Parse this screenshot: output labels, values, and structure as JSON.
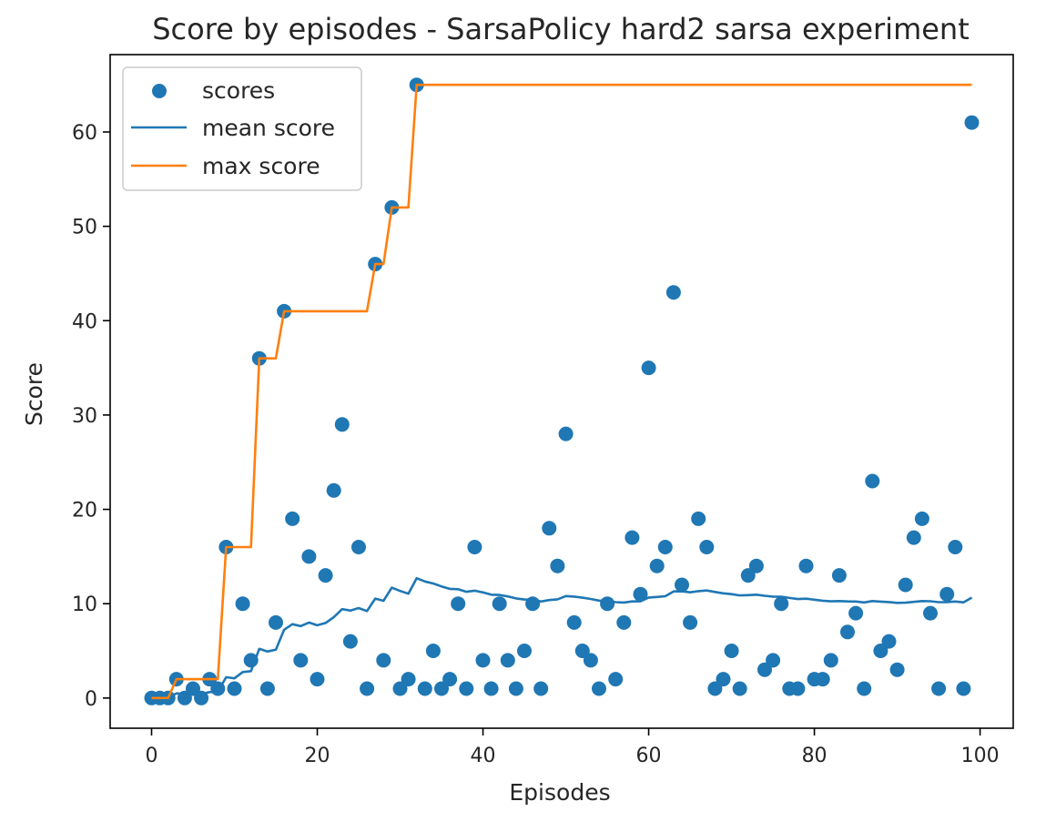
{
  "chart_data": {
    "type": "scatter",
    "title": "Score by episodes - SarsaPolicy hard2 sarsa experiment",
    "xlabel": "Episodes",
    "ylabel": "Score",
    "xlim": [
      -5,
      104
    ],
    "ylim": [
      -3.2,
      68.2
    ],
    "xticks": [
      0,
      20,
      40,
      60,
      80,
      100
    ],
    "yticks": [
      0,
      10,
      20,
      30,
      40,
      50,
      60
    ],
    "grid": false,
    "legend_placement": "top-left",
    "series": [
      {
        "name": "scores",
        "kind": "scatter",
        "color": "#1f77b4",
        "x": [
          0,
          1,
          2,
          3,
          4,
          5,
          6,
          7,
          8,
          9,
          10,
          11,
          12,
          13,
          14,
          15,
          16,
          17,
          18,
          19,
          20,
          21,
          22,
          23,
          24,
          25,
          26,
          27,
          28,
          29,
          30,
          31,
          32,
          33,
          34,
          35,
          36,
          37,
          38,
          39,
          40,
          41,
          42,
          43,
          44,
          45,
          46,
          47,
          48,
          49,
          50,
          51,
          52,
          53,
          54,
          55,
          56,
          57,
          58,
          59,
          60,
          61,
          62,
          63,
          64,
          65,
          66,
          67,
          68,
          69,
          70,
          71,
          72,
          73,
          74,
          75,
          76,
          77,
          78,
          79,
          80,
          81,
          82,
          83,
          84,
          85,
          86,
          87,
          88,
          89,
          90,
          91,
          92,
          93,
          94,
          95,
          96,
          97,
          98,
          99
        ],
        "values": [
          0,
          0,
          0,
          2,
          0,
          1,
          0,
          2,
          1,
          16,
          1,
          10,
          4,
          36,
          1,
          8,
          41,
          19,
          4,
          15,
          2,
          13,
          22,
          29,
          6,
          16,
          1,
          46,
          4,
          52,
          1,
          2,
          65,
          1,
          5,
          1,
          2,
          10,
          1,
          16,
          4,
          1,
          10,
          4,
          1,
          5,
          10,
          1,
          18,
          14,
          28,
          8,
          5,
          4,
          1,
          10,
          2,
          8,
          17,
          11,
          35,
          14,
          16,
          43,
          12,
          8,
          19,
          16,
          1,
          2,
          5,
          1,
          13,
          14,
          3,
          4,
          10,
          1,
          1,
          14,
          2,
          2,
          4,
          13,
          7,
          9,
          1,
          23,
          5,
          6,
          3,
          12,
          17,
          19,
          9,
          1,
          11,
          16,
          1,
          61
        ]
      },
      {
        "name": "mean score",
        "kind": "line",
        "color": "#1f77b4",
        "x": [
          0,
          1,
          2,
          3,
          4,
          5,
          6,
          7,
          8,
          9,
          10,
          11,
          12,
          13,
          14,
          15,
          16,
          17,
          18,
          19,
          20,
          21,
          22,
          23,
          24,
          25,
          26,
          27,
          28,
          29,
          30,
          31,
          32,
          33,
          34,
          35,
          36,
          37,
          38,
          39,
          40,
          41,
          42,
          43,
          44,
          45,
          46,
          47,
          48,
          49,
          50,
          51,
          52,
          53,
          54,
          55,
          56,
          57,
          58,
          59,
          60,
          61,
          62,
          63,
          64,
          65,
          66,
          67,
          68,
          69,
          70,
          71,
          72,
          73,
          74,
          75,
          76,
          77,
          78,
          79,
          80,
          81,
          82,
          83,
          84,
          85,
          86,
          87,
          88,
          89,
          90,
          91,
          92,
          93,
          94,
          95,
          96,
          97,
          98,
          99
        ],
        "values": [
          0,
          0,
          0,
          0.5,
          0.4,
          0.5,
          0.43,
          0.63,
          0.67,
          2.2,
          2.09,
          2.75,
          2.85,
          5.21,
          4.93,
          5.13,
          7.24,
          7.83,
          7.63,
          8.0,
          7.71,
          7.95,
          8.57,
          9.42,
          9.28,
          9.54,
          9.22,
          10.54,
          10.31,
          11.7,
          11.35,
          11.06,
          12.7,
          12.35,
          12.14,
          11.83,
          11.57,
          11.53,
          11.26,
          11.38,
          11.2,
          10.95,
          10.93,
          10.77,
          10.56,
          10.44,
          10.43,
          10.23,
          10.39,
          10.46,
          10.81,
          10.75,
          10.64,
          10.5,
          10.33,
          10.32,
          10.16,
          10.12,
          10.24,
          10.25,
          10.66,
          10.71,
          10.79,
          11.3,
          11.31,
          11.21,
          11.33,
          11.4,
          11.24,
          11.1,
          11.01,
          10.88,
          10.91,
          10.95,
          10.84,
          10.75,
          10.74,
          10.61,
          10.49,
          10.53,
          10.42,
          10.32,
          10.25,
          10.28,
          10.24,
          10.23,
          10.13,
          10.28,
          10.22,
          10.17,
          10.09,
          10.11,
          10.19,
          10.28,
          10.26,
          10.16,
          10.17,
          10.23,
          10.14,
          10.65
        ]
      },
      {
        "name": "max score",
        "kind": "line",
        "color": "#ff7f0e",
        "x": [
          0,
          1,
          2,
          3,
          4,
          5,
          6,
          7,
          8,
          9,
          10,
          11,
          12,
          13,
          14,
          15,
          16,
          17,
          18,
          19,
          20,
          21,
          22,
          23,
          24,
          25,
          26,
          27,
          28,
          29,
          30,
          31,
          32,
          33,
          34,
          35,
          36,
          37,
          38,
          39,
          40,
          41,
          42,
          43,
          44,
          45,
          46,
          47,
          48,
          49,
          50,
          51,
          52,
          53,
          54,
          55,
          56,
          57,
          58,
          59,
          60,
          61,
          62,
          63,
          64,
          65,
          66,
          67,
          68,
          69,
          70,
          71,
          72,
          73,
          74,
          75,
          76,
          77,
          78,
          79,
          80,
          81,
          82,
          83,
          84,
          85,
          86,
          87,
          88,
          89,
          90,
          91,
          92,
          93,
          94,
          95,
          96,
          97,
          98,
          99
        ],
        "values": [
          0,
          0,
          0,
          2,
          2,
          2,
          2,
          2,
          2,
          16,
          16,
          16,
          16,
          36,
          36,
          36,
          41,
          41,
          41,
          41,
          41,
          41,
          41,
          41,
          41,
          41,
          41,
          46,
          46,
          52,
          52,
          52,
          65,
          65,
          65,
          65,
          65,
          65,
          65,
          65,
          65,
          65,
          65,
          65,
          65,
          65,
          65,
          65,
          65,
          65,
          65,
          65,
          65,
          65,
          65,
          65,
          65,
          65,
          65,
          65,
          65,
          65,
          65,
          65,
          65,
          65,
          65,
          65,
          65,
          65,
          65,
          65,
          65,
          65,
          65,
          65,
          65,
          65,
          65,
          65,
          65,
          65,
          65,
          65,
          65,
          65,
          65,
          65,
          65,
          65,
          65,
          65,
          65,
          65,
          65,
          65,
          65,
          65,
          65,
          65
        ]
      }
    ]
  }
}
